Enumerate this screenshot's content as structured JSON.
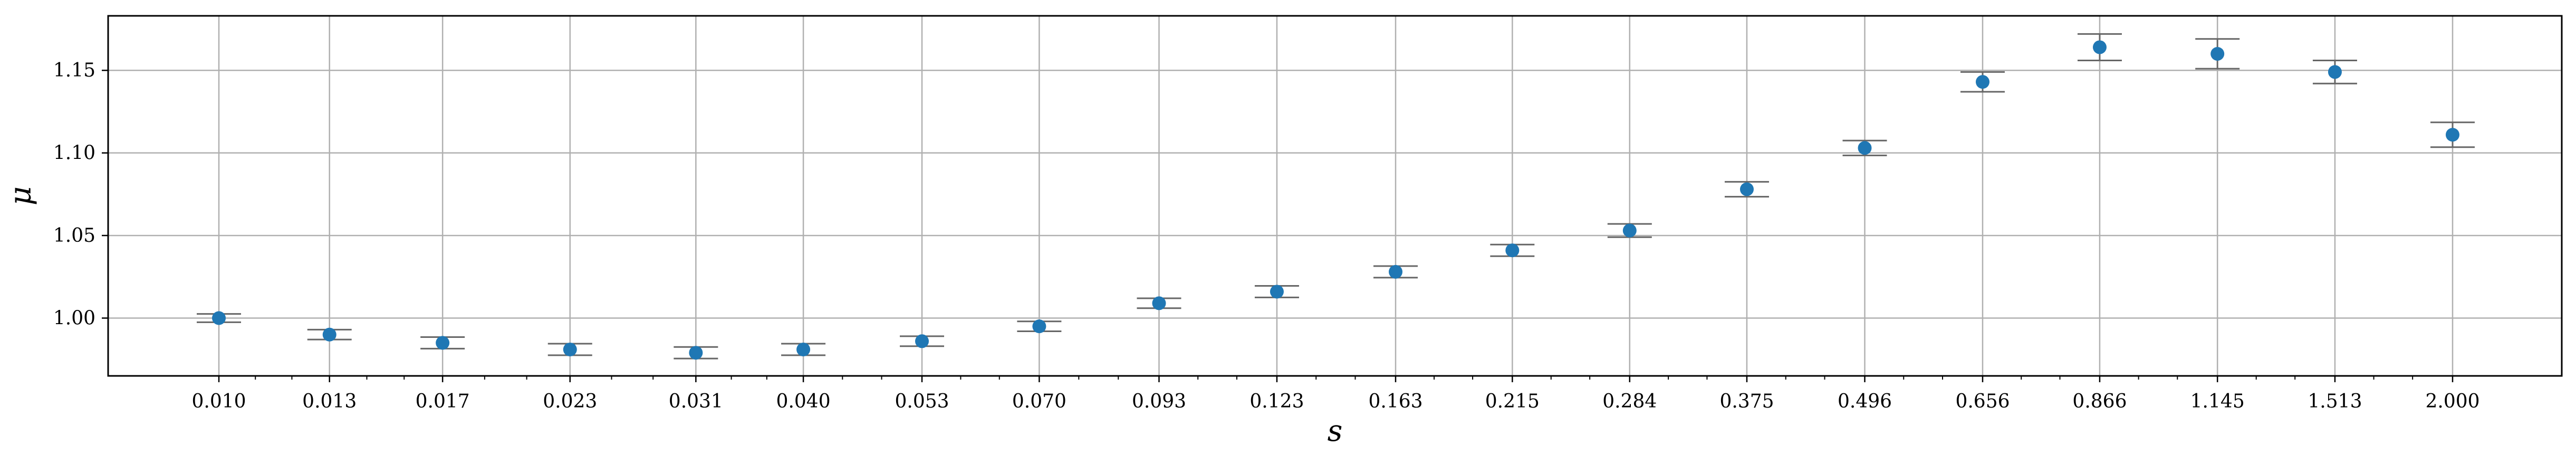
{
  "chart_data": {
    "type": "scatter",
    "title": "",
    "xlabel": "s",
    "ylabel": "μ",
    "x_scale": "log",
    "x_ticks": [
      "0.010",
      "0.013",
      "0.017",
      "0.023",
      "0.031",
      "0.040",
      "0.053",
      "0.070",
      "0.093",
      "0.123",
      "0.163",
      "0.215",
      "0.284",
      "0.375",
      "0.496",
      "0.656",
      "0.866",
      "1.145",
      "1.513",
      "2.000"
    ],
    "ylim": [
      0.965,
      1.183
    ],
    "y_ticks": [
      "1.00",
      "1.05",
      "1.10",
      "1.15"
    ],
    "grid": true,
    "series": [
      {
        "x": [
          0.01,
          0.013,
          0.017,
          0.023,
          0.031,
          0.04,
          0.053,
          0.07,
          0.093,
          0.123,
          0.163,
          0.215,
          0.284,
          0.375,
          0.496,
          0.656,
          0.866,
          1.145,
          1.513,
          2.0
        ],
        "y": [
          1.0,
          0.99,
          0.985,
          0.981,
          0.979,
          0.981,
          0.986,
          0.995,
          1.009,
          1.016,
          1.028,
          1.041,
          1.053,
          1.078,
          1.103,
          1.143,
          1.164,
          1.16,
          1.149,
          1.111
        ],
        "err": [
          0.0025,
          0.003,
          0.0035,
          0.0035,
          0.0035,
          0.0035,
          0.003,
          0.003,
          0.003,
          0.0035,
          0.0035,
          0.0035,
          0.004,
          0.0045,
          0.0045,
          0.006,
          0.008,
          0.009,
          0.007,
          0.0075
        ],
        "color": "#1f77b4",
        "errbar_color": "#666666"
      }
    ]
  }
}
